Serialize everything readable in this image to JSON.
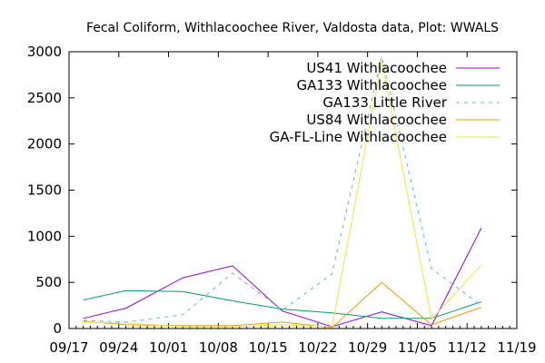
{
  "chart_data": {
    "type": "line",
    "title": "Fecal Coliform, Withlacoochee River, Valdosta data, Plot: WWALS",
    "xlabel": "",
    "ylabel": "",
    "x_ticks": [
      "09/17",
      "09/24",
      "10/01",
      "10/08",
      "10/15",
      "10/22",
      "10/29",
      "11/05",
      "11/12",
      "11/19"
    ],
    "xlim": [
      0,
      63
    ],
    "ylim": [
      0,
      3000
    ],
    "y_ticks": [
      0,
      500,
      1000,
      1500,
      2000,
      2500,
      3000
    ],
    "grid": false,
    "legend_position": "top-right",
    "x": [
      2,
      8,
      16,
      23,
      30,
      37,
      44,
      51,
      58
    ],
    "series": [
      {
        "name": "US41 Withlacoochee",
        "color": "#9400d3",
        "dash": "solid",
        "values": [
          110,
          220,
          550,
          680,
          190,
          20,
          180,
          30,
          1090
        ]
      },
      {
        "name": "GA133 Withlacoochee",
        "color": "#009e73",
        "dash": "solid",
        "values": [
          310,
          410,
          400,
          300,
          210,
          170,
          110,
          110,
          290
        ]
      },
      {
        "name": "GA133 Little River",
        "color": "#56b4e9",
        "dash": "dashed",
        "values": [
          90,
          70,
          150,
          600,
          200,
          590,
          2950,
          650,
          250
        ]
      },
      {
        "name": "US84 Withlacoochee",
        "color": "#e69f00",
        "dash": "solid",
        "values": [
          80,
          40,
          30,
          30,
          70,
          10,
          500,
          40,
          230
        ]
      },
      {
        "name": "GA-FL-Line Withlacoochee",
        "color": "#f0e442",
        "dash": "solid",
        "values": [
          70,
          60,
          20,
          20,
          40,
          20,
          2900,
          100,
          690
        ]
      }
    ]
  }
}
